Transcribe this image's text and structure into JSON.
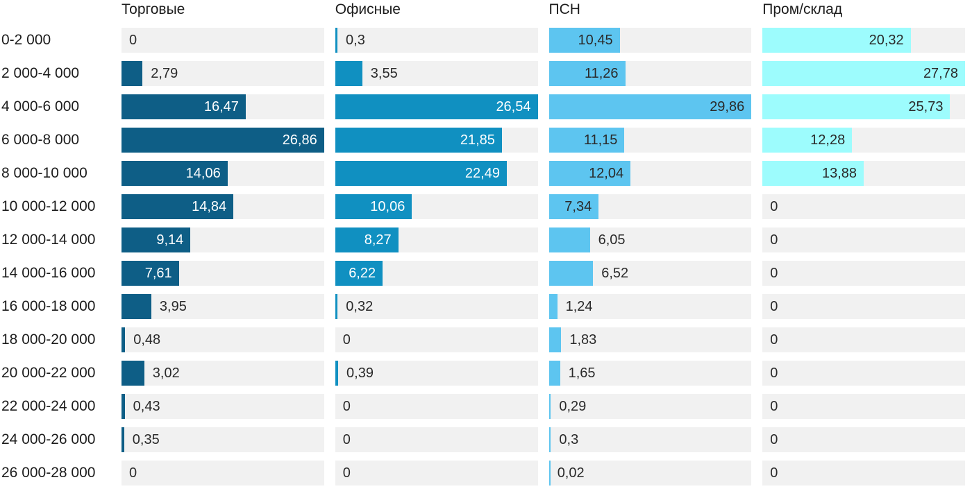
{
  "chart_data": {
    "type": "bar",
    "orientation": "horizontal",
    "title": "",
    "xlabel": "",
    "ylabel": "",
    "grid": false,
    "legend_position": "column-headers-top",
    "scaling": "each column normalized to its own max value",
    "value_format": "comma-decimal",
    "track_color": "#f1f1f1",
    "text_color": "#1c1c1c",
    "categories": [
      "0-2 000",
      "2 000-4 000",
      "4 000-6 000",
      "6 000-8 000",
      "8 000-10 000",
      "10 000-12 000",
      "12 000-14 000",
      "14 000-16 000",
      "16 000-18 000",
      "18 000-20 000",
      "20 000-22 000",
      "22 000-24 000",
      "24 000-26 000",
      "26 000-28 000"
    ],
    "series": [
      {
        "name": "Торговые",
        "color": "#0e5e86",
        "inside_label_color": "#ffffff",
        "values": [
          0,
          2.79,
          16.47,
          26.86,
          14.06,
          14.84,
          9.14,
          7.61,
          3.95,
          0.48,
          3.02,
          0.43,
          0.35,
          0
        ]
      },
      {
        "name": "Офисные",
        "color": "#1090c1",
        "inside_label_color": "#ffffff",
        "values": [
          0.3,
          3.55,
          26.54,
          21.85,
          22.49,
          10.06,
          8.27,
          6.22,
          0.32,
          0,
          0.39,
          0,
          0,
          0
        ]
      },
      {
        "name": "ПСН",
        "color": "#5dc5f0",
        "inside_label_color": "#2a2a2a",
        "values": [
          10.45,
          11.26,
          29.86,
          11.15,
          12.04,
          7.34,
          6.05,
          6.52,
          1.24,
          1.83,
          1.65,
          0.29,
          0.3,
          0.02
        ]
      },
      {
        "name": "Пром/склад",
        "color": "#9dfcfd",
        "inside_label_color": "#2a2a2a",
        "values": [
          20.32,
          27.78,
          25.73,
          12.28,
          13.88,
          0,
          0,
          0,
          0,
          0,
          0,
          0,
          0,
          0
        ]
      }
    ]
  }
}
